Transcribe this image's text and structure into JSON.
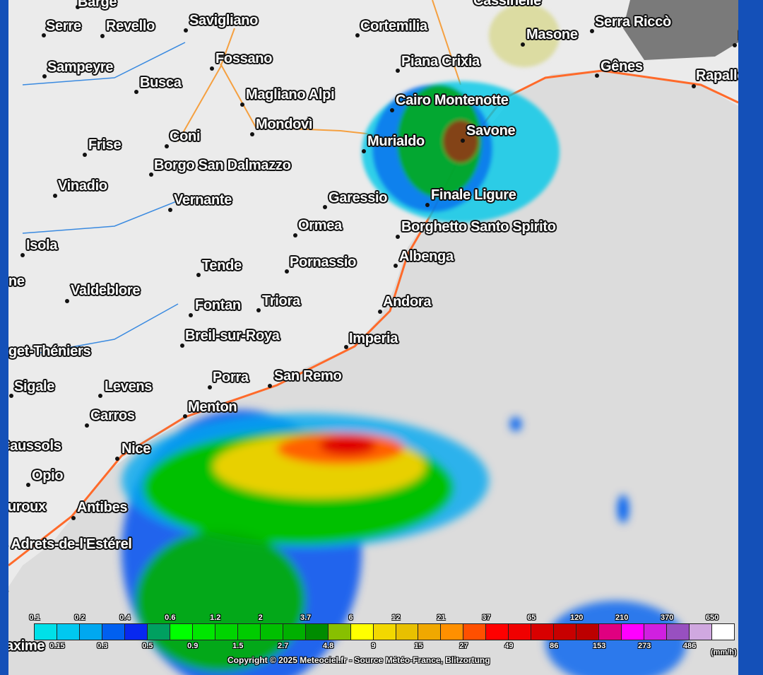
{
  "map": {
    "cities": [
      "Barge",
      "Serre",
      "Revello",
      "Savigliano",
      "Cortemilia",
      "Cassinelle",
      "Masone",
      "Serra Riccò",
      "Bo",
      "Gênes",
      "Rapallo",
      "Sampeyre",
      "Busca",
      "Fossano",
      "Piana Crixia",
      "Magliano Alpi",
      "Mondovì",
      "Cairo Montenotte",
      "Savone",
      "Coni",
      "Frise",
      "Murialdo",
      "Borgo San Dalmazzo",
      "Vinadio",
      "Vernante",
      "Garessio",
      "Finale Ligure",
      "Ormea",
      "Borghetto Santo Spirito",
      "Isola",
      "one",
      "Tende",
      "Pornassio",
      "Albenga",
      "Valdeblore",
      "Fontan",
      "Triora",
      "Andora",
      "Breil-sur-Roya",
      "Imperia",
      "uget-Théniers",
      "Sigale",
      "Levens",
      "Porra",
      "San Remo",
      "Carros",
      "Menton",
      "Caussols",
      "Nice",
      "Opio",
      "auroux",
      "Antibes",
      "s Adrets-de-l'Estérel",
      "s",
      "axime"
    ]
  },
  "legend": {
    "unit": "(mm/h)",
    "labels": [
      "0.1",
      "0.15",
      "0.2",
      "0.3",
      "0.4",
      "0.5",
      "0.6",
      "0.9",
      "1.2",
      "1.5",
      "2",
      "2.7",
      "3.7",
      "4.8",
      "6",
      "9",
      "12",
      "15",
      "21",
      "27",
      "37",
      "49",
      "65",
      "86",
      "120",
      "153",
      "210",
      "273",
      "370",
      "486",
      "650"
    ],
    "colors": [
      "#00e0e8",
      "#00c8f0",
      "#00a8f0",
      "#0060f0",
      "#0828f0",
      "#00a060",
      "#00ff00",
      "#00e600",
      "#00d400",
      "#00cc00",
      "#00c000",
      "#00b000",
      "#008c00",
      "#88c000",
      "#ffff00",
      "#f2d800",
      "#e8c000",
      "#f0a800",
      "#ff9000",
      "#ff5000",
      "#ff0000",
      "#f00000",
      "#d80000",
      "#c80000",
      "#bc0000",
      "#e00080",
      "#ff00ff",
      "#d020e0",
      "#9850c0",
      "#d0a8e0",
      "#ffffff"
    ]
  },
  "copyright": "Copyright © 2025  Meteociel.fr  -  Source Météo-France, Blitzortung"
}
